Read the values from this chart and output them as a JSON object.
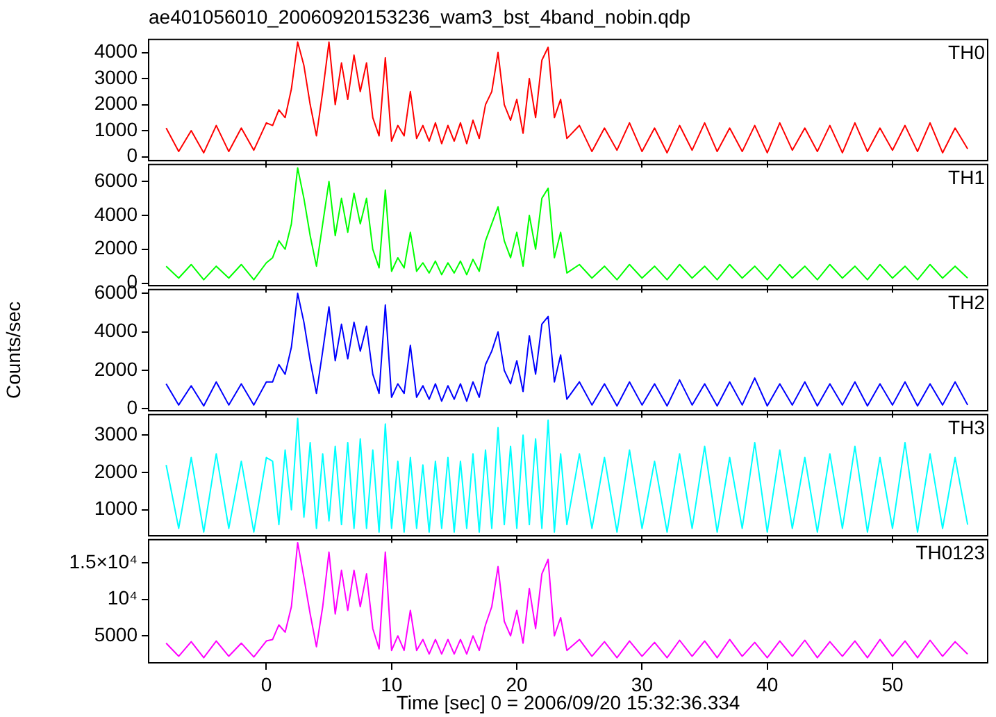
{
  "chart_data": [
    {
      "type": "line",
      "title": "ae401056010_20060920153236_wam3_bst_4band_nobin.qdp",
      "xlim": [
        -9.4,
        57.6
      ],
      "xticks": [
        0,
        10,
        20,
        30,
        40,
        50
      ],
      "ylim": [
        -150,
        4500
      ],
      "yticks": [
        0,
        1000,
        2000,
        3000,
        4000
      ],
      "tick_labels": "y",
      "x": [
        -8,
        -7,
        -6,
        -5,
        -4,
        -3,
        -2,
        -1,
        0,
        0.5,
        1,
        1.5,
        2,
        2.5,
        3,
        3.5,
        4,
        4.5,
        5,
        5.5,
        6,
        6.5,
        7,
        7.5,
        8,
        8.5,
        9,
        9.5,
        10,
        10.5,
        11,
        11.5,
        12,
        12.5,
        13,
        13.5,
        14,
        14.5,
        15,
        15.5,
        16,
        16.5,
        17,
        17.5,
        18,
        18.5,
        19,
        19.5,
        20,
        20.5,
        21,
        21.5,
        22,
        22.5,
        23,
        23.5,
        24,
        25,
        26,
        27,
        28,
        29,
        30,
        31,
        32,
        33,
        34,
        35,
        36,
        37,
        38,
        39,
        40,
        41,
        42,
        43,
        44,
        45,
        46,
        47,
        48,
        49,
        50,
        51,
        52,
        53,
        54,
        55,
        56
      ],
      "series": [
        {
          "name": "TH0",
          "color": "#ff0000",
          "values": [
            1100,
            200,
            1000,
            150,
            1200,
            200,
            1100,
            250,
            1300,
            1200,
            1800,
            1500,
            2600,
            4400,
            3500,
            2000,
            800,
            2500,
            4400,
            2000,
            3600,
            2200,
            3900,
            2500,
            3600,
            1500,
            800,
            3800,
            600,
            1200,
            800,
            2500,
            700,
            1200,
            600,
            1300,
            500,
            1200,
            600,
            1300,
            500,
            1400,
            700,
            2000,
            2500,
            4000,
            2000,
            1400,
            2200,
            900,
            3000,
            1500,
            3700,
            4200,
            1500,
            2200,
            700,
            1200,
            200,
            1100,
            250,
            1300,
            200,
            1100,
            150,
            1200,
            250,
            1300,
            200,
            1100,
            200,
            1200,
            150,
            1300,
            250,
            1100,
            200,
            1200,
            150,
            1300,
            200,
            1100,
            250,
            1200,
            200,
            1300,
            150,
            1100,
            300
          ]
        }
      ]
    },
    {
      "type": "line",
      "xlim": [
        -9.4,
        57.6
      ],
      "xticks": [
        0,
        10,
        20,
        30,
        40,
        50
      ],
      "ylim": [
        -150,
        7000
      ],
      "yticks": [
        0,
        2000,
        4000,
        6000
      ],
      "tick_labels": "y",
      "x": [
        -8,
        -7,
        -6,
        -5,
        -4,
        -3,
        -2,
        -1,
        0,
        0.5,
        1,
        1.5,
        2,
        2.5,
        3,
        3.5,
        4,
        4.5,
        5,
        5.5,
        6,
        6.5,
        7,
        7.5,
        8,
        8.5,
        9,
        9.5,
        10,
        10.5,
        11,
        11.5,
        12,
        12.5,
        13,
        13.5,
        14,
        14.5,
        15,
        15.5,
        16,
        16.5,
        17,
        17.5,
        18,
        18.5,
        19,
        19.5,
        20,
        20.5,
        21,
        21.5,
        22,
        22.5,
        23,
        23.5,
        24,
        25,
        26,
        27,
        28,
        29,
        30,
        31,
        32,
        33,
        34,
        35,
        36,
        37,
        38,
        39,
        40,
        41,
        42,
        43,
        44,
        45,
        46,
        47,
        48,
        49,
        50,
        51,
        52,
        53,
        54,
        55,
        56
      ],
      "series": [
        {
          "name": "TH1",
          "color": "#00ff00",
          "values": [
            1000,
            300,
            1100,
            200,
            1000,
            300,
            1100,
            200,
            1200,
            1500,
            2500,
            2000,
            3500,
            6800,
            5000,
            2800,
            1000,
            3500,
            6000,
            2800,
            5000,
            3000,
            5300,
            3500,
            5000,
            2000,
            900,
            5500,
            700,
            1500,
            900,
            3000,
            700,
            1200,
            600,
            1300,
            500,
            1200,
            600,
            1300,
            500,
            1400,
            700,
            2500,
            3500,
            4500,
            2500,
            1500,
            3000,
            1000,
            4000,
            2000,
            5000,
            5600,
            1500,
            3000,
            600,
            1100,
            300,
            1000,
            200,
            1100,
            300,
            1000,
            200,
            1100,
            300,
            1000,
            200,
            1100,
            300,
            1000,
            200,
            1100,
            300,
            1000,
            200,
            1100,
            300,
            1000,
            200,
            1100,
            300,
            1000,
            200,
            1100,
            300,
            1000,
            300
          ]
        }
      ]
    },
    {
      "type": "line",
      "ylabel": "Counts/sec",
      "xlim": [
        -9.4,
        57.6
      ],
      "xticks": [
        0,
        10,
        20,
        30,
        40,
        50
      ],
      "ylim": [
        -100,
        6200
      ],
      "yticks": [
        0,
        2000,
        4000,
        6000
      ],
      "tick_labels": "y",
      "x": [
        -8,
        -7,
        -6,
        -5,
        -4,
        -3,
        -2,
        -1,
        0,
        0.5,
        1,
        1.5,
        2,
        2.5,
        3,
        3.5,
        4,
        4.5,
        5,
        5.5,
        6,
        6.5,
        7,
        7.5,
        8,
        8.5,
        9,
        9.5,
        10,
        10.5,
        11,
        11.5,
        12,
        12.5,
        13,
        13.5,
        14,
        14.5,
        15,
        15.5,
        16,
        16.5,
        17,
        17.5,
        18,
        18.5,
        19,
        19.5,
        20,
        20.5,
        21,
        21.5,
        22,
        22.5,
        23,
        23.5,
        24,
        25,
        26,
        27,
        28,
        29,
        30,
        31,
        32,
        33,
        34,
        35,
        36,
        37,
        38,
        39,
        40,
        41,
        42,
        43,
        44,
        45,
        46,
        47,
        48,
        49,
        50,
        51,
        52,
        53,
        54,
        55,
        56
      ],
      "series": [
        {
          "name": "TH2",
          "color": "#0000ff",
          "values": [
            1300,
            200,
            1200,
            150,
            1400,
            200,
            1300,
            200,
            1400,
            1400,
            2300,
            1800,
            3200,
            6000,
            4500,
            2500,
            800,
            3000,
            5300,
            2500,
            4400,
            2600,
            4500,
            3000,
            4300,
            1800,
            800,
            5400,
            600,
            1300,
            800,
            3300,
            600,
            1200,
            500,
            1300,
            400,
            1200,
            500,
            1300,
            400,
            1400,
            600,
            2300,
            3000,
            4000,
            2000,
            1300,
            2500,
            900,
            3800,
            1800,
            4400,
            4800,
            1400,
            2800,
            500,
            1400,
            200,
            1300,
            150,
            1400,
            200,
            1300,
            150,
            1500,
            200,
            1300,
            150,
            1400,
            200,
            1600,
            150,
            1300,
            200,
            1400,
            150,
            1300,
            200,
            1400,
            150,
            1300,
            200,
            1400,
            150,
            1300,
            200,
            1400,
            200
          ]
        }
      ]
    },
    {
      "type": "line",
      "xlim": [
        -9.4,
        57.6
      ],
      "xticks": [
        0,
        10,
        20,
        30,
        40,
        50
      ],
      "ylim": [
        300,
        3550
      ],
      "yticks": [
        1000,
        2000,
        3000
      ],
      "tick_labels": "y",
      "x": [
        -8,
        -7,
        -6,
        -5,
        -4,
        -3,
        -2,
        -1,
        0,
        0.5,
        1,
        1.5,
        2,
        2.5,
        3,
        3.5,
        4,
        4.5,
        5,
        5.5,
        6,
        6.5,
        7,
        7.5,
        8,
        8.5,
        9,
        9.5,
        10,
        10.5,
        11,
        11.5,
        12,
        12.5,
        13,
        13.5,
        14,
        14.5,
        15,
        15.5,
        16,
        16.5,
        17,
        17.5,
        18,
        18.5,
        19,
        19.5,
        20,
        20.5,
        21,
        21.5,
        22,
        22.5,
        23,
        23.5,
        24,
        25,
        26,
        27,
        28,
        29,
        30,
        31,
        32,
        33,
        34,
        35,
        36,
        37,
        38,
        39,
        40,
        41,
        42,
        43,
        44,
        45,
        46,
        47,
        48,
        49,
        50,
        51,
        52,
        53,
        54,
        55,
        56
      ],
      "series": [
        {
          "name": "TH3",
          "color": "#00ffff",
          "values": [
            2200,
            500,
            2400,
            400,
            2500,
            500,
            2300,
            400,
            2400,
            2300,
            600,
            2600,
            1000,
            3450,
            800,
            2800,
            500,
            2500,
            700,
            2700,
            600,
            2800,
            500,
            2900,
            500,
            2600,
            400,
            3300,
            500,
            2300,
            400,
            2400,
            500,
            2200,
            400,
            2300,
            500,
            2400,
            400,
            2300,
            500,
            2500,
            400,
            2600,
            500,
            3200,
            600,
            2700,
            500,
            3000,
            600,
            2900,
            500,
            3400,
            400,
            2500,
            600,
            2500,
            500,
            2400,
            400,
            2600,
            500,
            2300,
            400,
            2500,
            500,
            2700,
            400,
            2400,
            500,
            2800,
            400,
            2600,
            500,
            2400,
            400,
            2500,
            500,
            2700,
            400,
            2400,
            500,
            2800,
            400,
            2500,
            500,
            2400,
            600
          ]
        }
      ]
    },
    {
      "type": "line",
      "xlabel": "Time [sec] 0 = 2006/09/20 15:32:36.334",
      "xlim": [
        -9.4,
        57.6
      ],
      "xticks": [
        0,
        10,
        20,
        30,
        40,
        50
      ],
      "ylim": [
        1300,
        18200
      ],
      "yticks": [
        5000,
        {
          "value": 10000,
          "label": "10⁴"
        },
        {
          "value": 15000,
          "label": "1.5×10⁴"
        }
      ],
      "x": [
        -8,
        -7,
        -6,
        -5,
        -4,
        -3,
        -2,
        -1,
        0,
        0.5,
        1,
        1.5,
        2,
        2.5,
        3,
        3.5,
        4,
        4.5,
        5,
        5.5,
        6,
        6.5,
        7,
        7.5,
        8,
        8.5,
        9,
        9.5,
        10,
        10.5,
        11,
        11.5,
        12,
        12.5,
        13,
        13.5,
        14,
        14.5,
        15,
        15.5,
        16,
        16.5,
        17,
        17.5,
        18,
        18.5,
        19,
        19.5,
        20,
        20.5,
        21,
        21.5,
        22,
        22.5,
        23,
        23.5,
        24,
        25,
        26,
        27,
        28,
        29,
        30,
        31,
        32,
        33,
        34,
        35,
        36,
        37,
        38,
        39,
        40,
        41,
        42,
        43,
        44,
        45,
        46,
        47,
        48,
        49,
        50,
        51,
        52,
        53,
        54,
        55,
        56
      ],
      "series": [
        {
          "name": "TH0123",
          "color": "#ff00ff",
          "values": [
            4000,
            2200,
            4200,
            2000,
            4300,
            2200,
            4000,
            2100,
            4300,
            4500,
            6500,
            5500,
            9000,
            17800,
            13000,
            8000,
            3500,
            9000,
            16500,
            8000,
            14000,
            8500,
            14000,
            9000,
            13500,
            6000,
            3200,
            16500,
            3000,
            5000,
            3000,
            8500,
            3000,
            4500,
            2500,
            4500,
            2500,
            4500,
            2500,
            4500,
            2500,
            5000,
            3000,
            6500,
            9000,
            14500,
            7000,
            5000,
            8500,
            4000,
            11500,
            6000,
            13500,
            15500,
            5000,
            7500,
            3000,
            4500,
            2200,
            4200,
            2000,
            4300,
            2200,
            4100,
            2000,
            4400,
            2200,
            4300,
            2000,
            4500,
            2200,
            4100,
            2000,
            4300,
            2200,
            4400,
            2000,
            4200,
            2200,
            4300,
            2000,
            4500,
            2200,
            4300,
            2000,
            4400,
            2200,
            4200,
            2500
          ]
        }
      ]
    }
  ]
}
